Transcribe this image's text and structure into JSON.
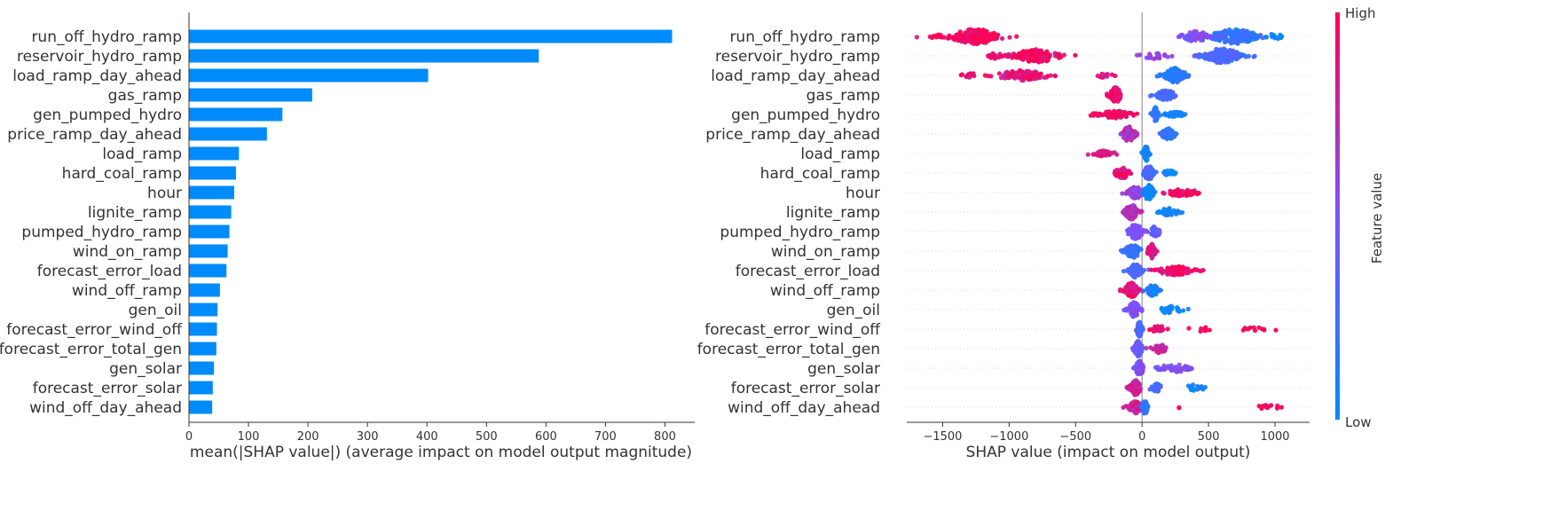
{
  "chart_data": [
    {
      "type": "bar",
      "orientation": "horizontal",
      "xlabel": "mean(|SHAP value|) (average impact on model output magnitude)",
      "ylabel": "",
      "xlim": [
        0,
        850
      ],
      "x_ticks": [
        "0",
        "100",
        "200",
        "300",
        "400",
        "500",
        "600",
        "700",
        "800"
      ],
      "bar_color": "#008bfb",
      "grid": false,
      "categories": [
        "run_off_hydro_ramp",
        "reservoir_hydro_ramp",
        "load_ramp_day_ahead",
        "gas_ramp",
        "gen_pumped_hydro",
        "price_ramp_day_ahead",
        "load_ramp",
        "hard_coal_ramp",
        "hour",
        "lignite_ramp",
        "pumped_hydro_ramp",
        "wind_on_ramp",
        "forecast_error_load",
        "wind_off_ramp",
        "gen_oil",
        "forecast_error_wind_off",
        "forecast_error_total_gen",
        "gen_solar",
        "forecast_error_solar",
        "wind_off_day_ahead"
      ],
      "values": [
        812,
        588,
        402,
        207,
        157,
        131,
        84,
        79,
        76,
        71,
        68,
        65,
        63,
        52,
        48,
        47,
        46,
        42,
        40,
        39
      ]
    },
    {
      "type": "scatter",
      "subtype": "beeswarm",
      "xlabel": "SHAP value (impact on model output)",
      "ylabel": "",
      "xlim": [
        -1770,
        1260
      ],
      "x_ticks": [
        "−1500",
        "−1000",
        "−500",
        "0",
        "500",
        "1000"
      ],
      "zero_line": true,
      "grid": false,
      "categories": [
        "run_off_hydro_ramp",
        "reservoir_hydro_ramp",
        "load_ramp_day_ahead",
        "gas_ramp",
        "gen_pumped_hydro",
        "price_ramp_day_ahead",
        "load_ramp",
        "hard_coal_ramp",
        "hour",
        "lignite_ramp",
        "pumped_hydro_ramp",
        "wind_on_ramp",
        "forecast_error_load",
        "wind_off_ramp",
        "gen_oil",
        "forecast_error_wind_off",
        "forecast_error_total_gen",
        "gen_solar",
        "forecast_error_solar",
        "wind_off_day_ahead"
      ],
      "clusters": [
        [
          {
            "c": -1250,
            "s": 200,
            "n": 160,
            "f": 0.95,
            "h": 1
          },
          {
            "c": -1550,
            "s": 60,
            "n": 10,
            "f": 1.0,
            "h": 0.3
          },
          {
            "c": 700,
            "s": 180,
            "n": 180,
            "f": 0.2,
            "h": 1
          },
          {
            "c": 400,
            "s": 120,
            "n": 60,
            "f": 0.5,
            "h": 0.7
          },
          {
            "c": 1000,
            "s": 60,
            "n": 15,
            "f": 0.05,
            "h": 0.4
          }
        ],
        [
          {
            "c": -800,
            "s": 180,
            "n": 120,
            "f": 0.95,
            "h": 0.9
          },
          {
            "c": -1100,
            "s": 80,
            "n": 20,
            "f": 0.9,
            "h": 0.4
          },
          {
            "c": 600,
            "s": 150,
            "n": 170,
            "f": 0.3,
            "h": 1
          },
          {
            "c": 100,
            "s": 120,
            "n": 20,
            "f": 0.6,
            "h": 0.4
          }
        ],
        [
          {
            "c": -900,
            "s": 200,
            "n": 90,
            "f": 0.9,
            "h": 0.7
          },
          {
            "c": -1300,
            "s": 60,
            "n": 14,
            "f": 0.9,
            "h": 0.35
          },
          {
            "c": -300,
            "s": 80,
            "n": 12,
            "f": 0.85,
            "h": 0.3
          },
          {
            "c": 250,
            "s": 80,
            "n": 120,
            "f": 0.15,
            "h": 1
          }
        ],
        [
          {
            "c": -200,
            "s": 50,
            "n": 80,
            "f": 0.9,
            "h": 1
          },
          {
            "c": 180,
            "s": 80,
            "n": 80,
            "f": 0.3,
            "h": 0.7
          }
        ],
        [
          {
            "c": -200,
            "s": 150,
            "n": 80,
            "f": 0.95,
            "h": 0.5
          },
          {
            "c": 100,
            "s": 20,
            "n": 40,
            "f": 0.2,
            "h": 1
          },
          {
            "c": 250,
            "s": 80,
            "n": 40,
            "f": 0.05,
            "h": 0.35
          }
        ],
        [
          {
            "c": -100,
            "s": 50,
            "n": 80,
            "f": 0.7,
            "h": 1
          },
          {
            "c": 200,
            "s": 60,
            "n": 60,
            "f": 0.2,
            "h": 0.75
          }
        ],
        [
          {
            "c": -300,
            "s": 80,
            "n": 40,
            "f": 0.9,
            "h": 0.4
          },
          {
            "c": 30,
            "s": 20,
            "n": 70,
            "f": 0.05,
            "h": 1
          }
        ],
        [
          {
            "c": -150,
            "s": 60,
            "n": 50,
            "f": 0.9,
            "h": 0.7
          },
          {
            "c": 50,
            "s": 40,
            "n": 60,
            "f": 0.3,
            "h": 1
          },
          {
            "c": 200,
            "s": 50,
            "n": 15,
            "f": 0.05,
            "h": 0.4
          }
        ],
        [
          {
            "c": -50,
            "s": 60,
            "n": 70,
            "f": 0.6,
            "h": 0.8
          },
          {
            "c": 50,
            "s": 40,
            "n": 60,
            "f": 0.05,
            "h": 1
          },
          {
            "c": 300,
            "s": 130,
            "n": 60,
            "f": 0.95,
            "h": 0.5
          }
        ],
        [
          {
            "c": -80,
            "s": 50,
            "n": 90,
            "f": 0.7,
            "h": 1
          },
          {
            "c": 200,
            "s": 80,
            "n": 40,
            "f": 0.05,
            "h": 0.5
          }
        ],
        [
          {
            "c": -50,
            "s": 60,
            "n": 90,
            "f": 0.5,
            "h": 1
          },
          {
            "c": 100,
            "s": 40,
            "n": 40,
            "f": 0.4,
            "h": 0.7
          }
        ],
        [
          {
            "c": -70,
            "s": 60,
            "n": 80,
            "f": 0.2,
            "h": 0.9
          },
          {
            "c": 70,
            "s": 30,
            "n": 60,
            "f": 0.85,
            "h": 1
          }
        ],
        [
          {
            "c": -50,
            "s": 50,
            "n": 60,
            "f": 0.3,
            "h": 0.9
          },
          {
            "c": 250,
            "s": 150,
            "n": 100,
            "f": 0.95,
            "h": 0.6
          }
        ],
        [
          {
            "c": -80,
            "s": 50,
            "n": 80,
            "f": 0.9,
            "h": 1
          },
          {
            "c": 80,
            "s": 50,
            "n": 60,
            "f": 0.1,
            "h": 0.8
          }
        ],
        [
          {
            "c": -60,
            "s": 50,
            "n": 80,
            "f": 0.5,
            "h": 1
          },
          {
            "c": 200,
            "s": 120,
            "n": 30,
            "f": 0.05,
            "h": 0.5
          }
        ],
        [
          {
            "c": -20,
            "s": 20,
            "n": 90,
            "f": 0.3,
            "h": 1
          },
          {
            "c": 120,
            "s": 60,
            "n": 20,
            "f": 0.95,
            "h": 0.5
          },
          {
            "c": 450,
            "s": 120,
            "n": 8,
            "f": 1.0,
            "h": 0.3
          },
          {
            "c": 850,
            "s": 120,
            "n": 12,
            "f": 1.0,
            "h": 0.3
          }
        ],
        [
          {
            "c": -30,
            "s": 30,
            "n": 90,
            "f": 0.4,
            "h": 1
          },
          {
            "c": 130,
            "s": 60,
            "n": 30,
            "f": 0.8,
            "h": 0.6
          }
        ],
        [
          {
            "c": -20,
            "s": 30,
            "n": 90,
            "f": 0.5,
            "h": 1
          },
          {
            "c": 250,
            "s": 150,
            "n": 40,
            "f": 0.5,
            "h": 0.5
          }
        ],
        [
          {
            "c": -50,
            "s": 40,
            "n": 90,
            "f": 0.8,
            "h": 1
          },
          {
            "c": 100,
            "s": 50,
            "n": 20,
            "f": 0.3,
            "h": 0.6
          },
          {
            "c": 400,
            "s": 100,
            "n": 20,
            "f": 0.05,
            "h": 0.4
          }
        ],
        [
          {
            "c": -50,
            "s": 50,
            "n": 60,
            "f": 0.8,
            "h": 0.8
          },
          {
            "c": 20,
            "s": 20,
            "n": 50,
            "f": 0.2,
            "h": 1
          },
          {
            "c": 950,
            "s": 120,
            "n": 12,
            "f": 1.0,
            "h": 0.3
          },
          {
            "c": 280,
            "s": 10,
            "n": 2,
            "f": 1.0,
            "h": 0.3
          }
        ]
      ]
    }
  ],
  "colorbar": {
    "title": "Feature value",
    "high_label": "High",
    "low_label": "Low",
    "low_color": "#008bfb",
    "mid_color": "#7c52ff",
    "high_color": "#ff0052"
  }
}
